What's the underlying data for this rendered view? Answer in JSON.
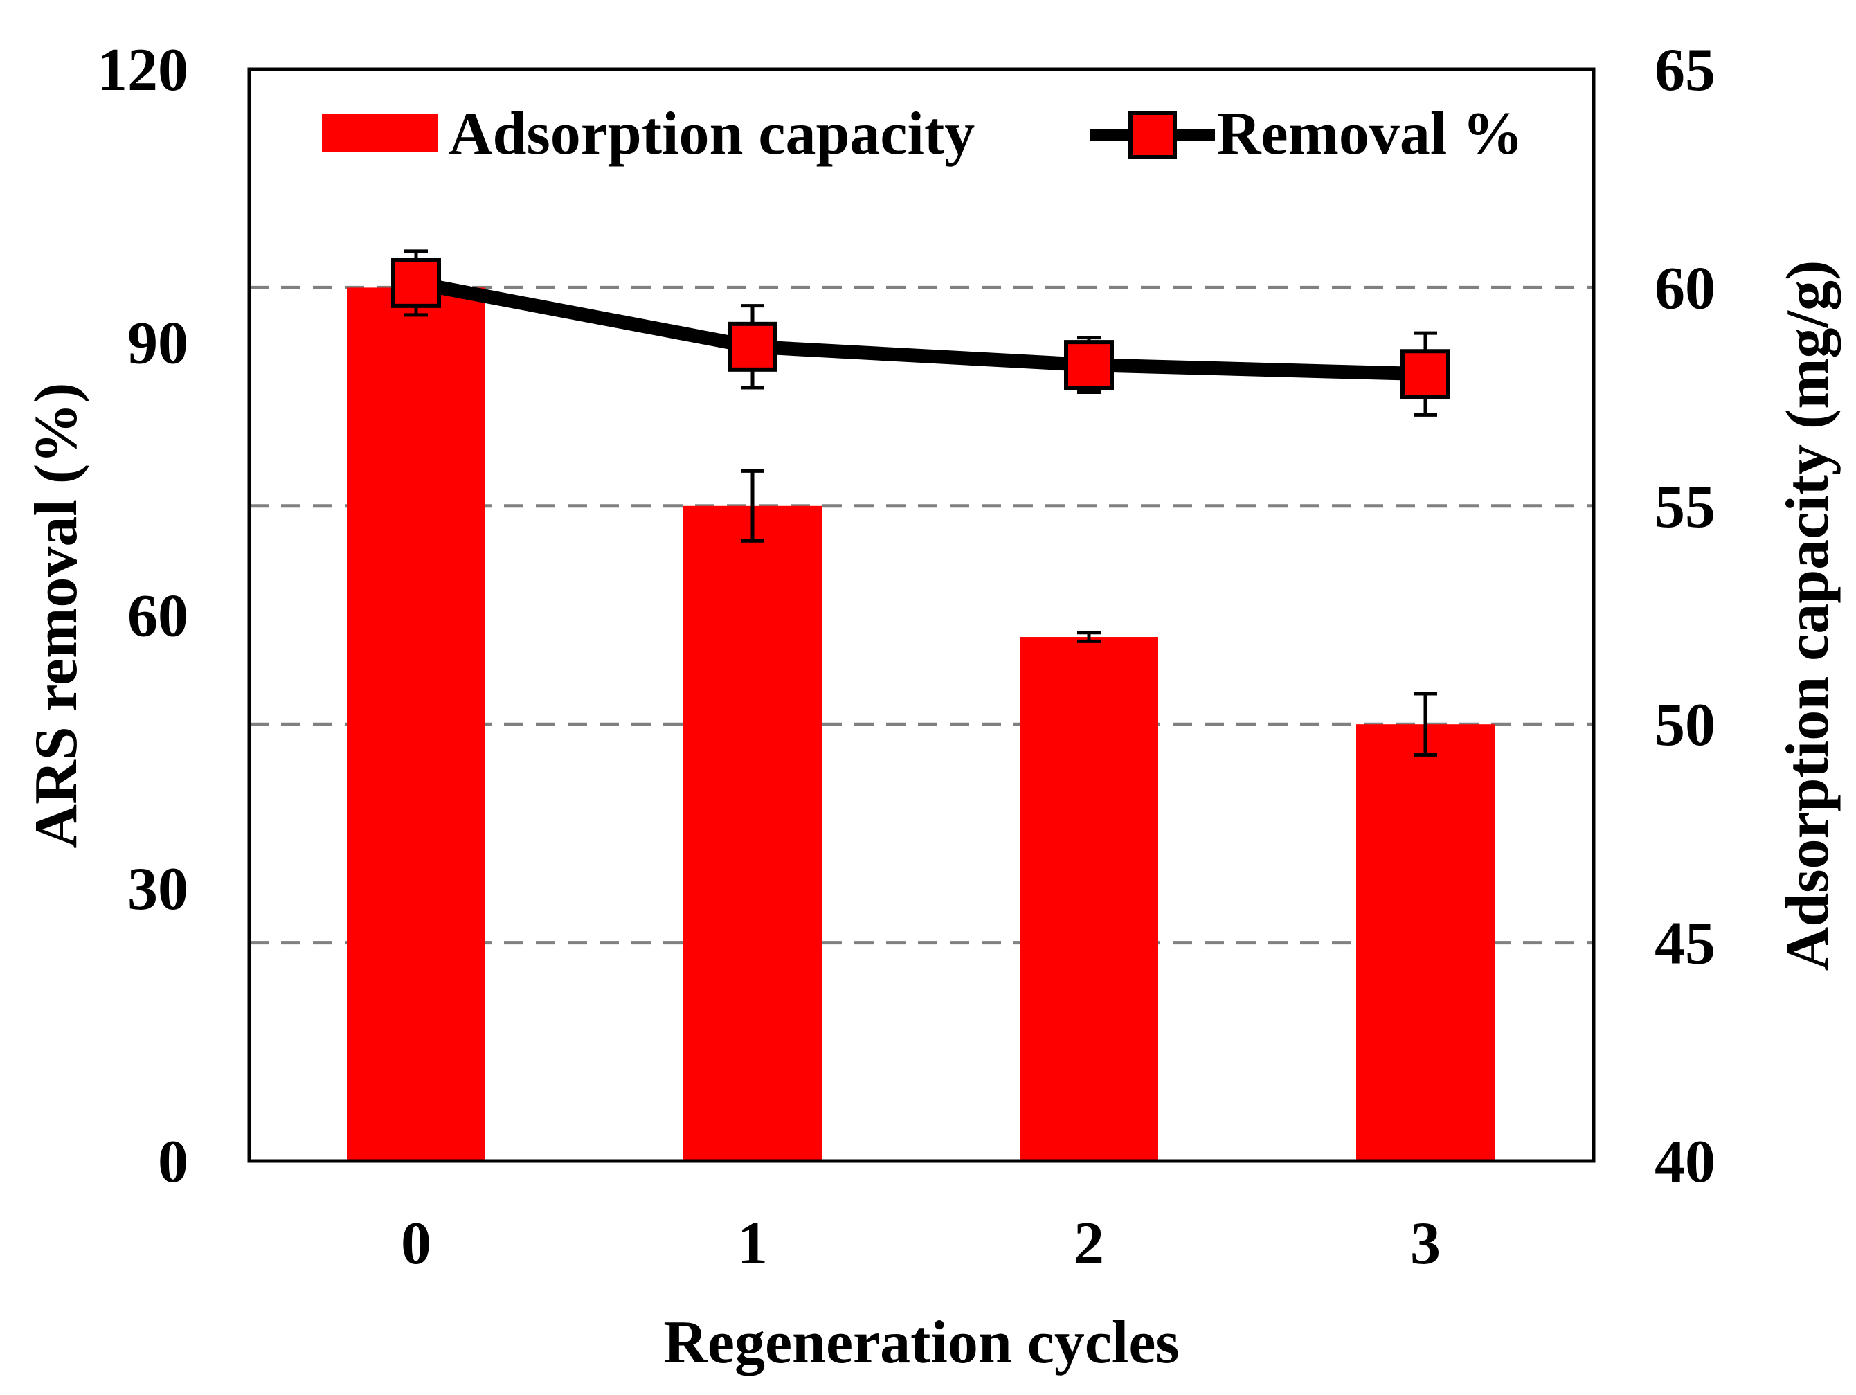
{
  "chart_data": {
    "type": "bar+line",
    "xlabel": "Regeneration cycles",
    "ylabel_left": "ARS removal (%)",
    "ylabel_right": "Adsorption capacity (mg/g)",
    "categories": [
      "0",
      "1",
      "2",
      "3"
    ],
    "y_left": {
      "min": 0,
      "max": 120,
      "ticks": [
        0,
        30,
        60,
        90,
        120
      ]
    },
    "y_right": {
      "min": 40,
      "max": 65,
      "ticks": [
        40,
        45,
        50,
        55,
        60,
        65
      ]
    },
    "gridlines_right": [
      45,
      50,
      55,
      60
    ],
    "bars": {
      "name": "Adsorption capacity",
      "axis": "right",
      "color": "#ff0000",
      "values": [
        60.0,
        55.0,
        52.0,
        50.0
      ],
      "errors": [
        0.0,
        0.8,
        0.1,
        0.7
      ]
    },
    "line": {
      "name": "Removal %",
      "axis": "left",
      "color": "#000000",
      "marker_color": "#ff0000",
      "values": [
        96.5,
        89.5,
        87.5,
        86.5
      ],
      "errors": [
        3.5,
        4.5,
        3.0,
        4.5
      ]
    },
    "legend": {
      "position": "top-right"
    }
  }
}
